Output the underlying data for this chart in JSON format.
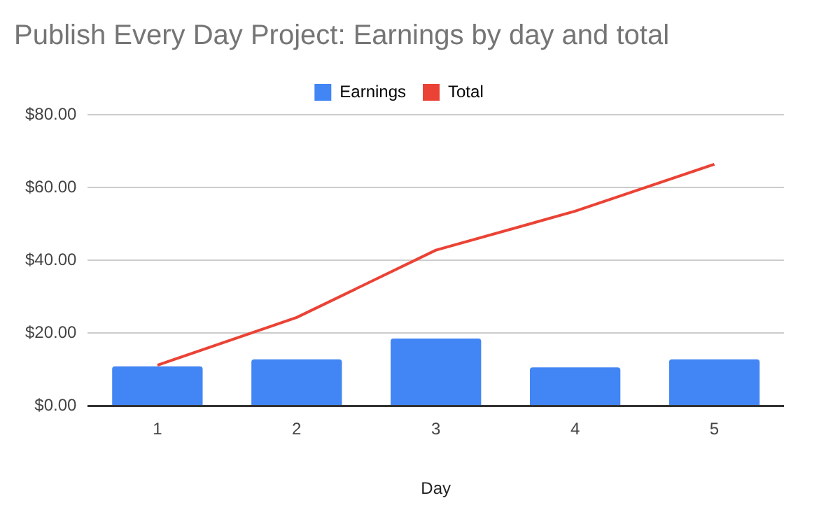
{
  "chart_data": {
    "type": "bar",
    "title": "Publish Every Day Project: Earnings by day and total",
    "xlabel": "Day",
    "categories": [
      "1",
      "2",
      "3",
      "4",
      "5"
    ],
    "series": [
      {
        "name": "Earnings",
        "color": "#4285f4",
        "values": [
          10.9,
          12.8,
          18.5,
          10.6,
          12.8
        ]
      },
      {
        "name": "Total",
        "type": "line",
        "color": "#ea4335",
        "values": [
          11.2,
          24.3,
          42.8,
          53.5,
          66.4
        ]
      }
    ],
    "ylim": [
      0,
      80
    ],
    "yticks": [
      {
        "value": 0,
        "label": "$0.00"
      },
      {
        "value": 20,
        "label": "$20.00"
      },
      {
        "value": 40,
        "label": "$40.00"
      },
      {
        "value": 60,
        "label": "$60.00"
      },
      {
        "value": 80,
        "label": "$80.00"
      }
    ],
    "grid": "y",
    "legend": "top",
    "marker": "none"
  }
}
